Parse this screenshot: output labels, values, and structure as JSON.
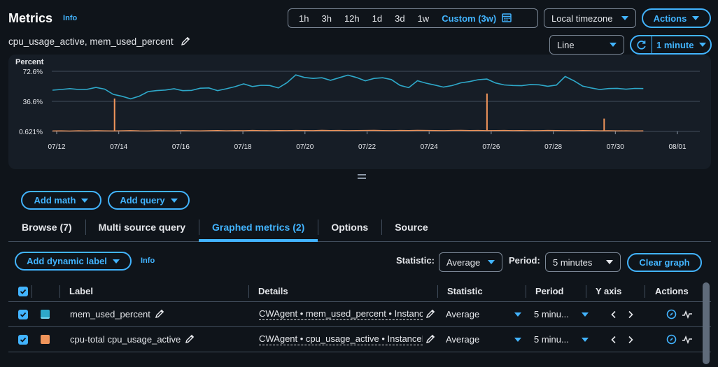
{
  "header": {
    "title": "Metrics",
    "info": "Info",
    "subtitle": "cpu_usage_active, mem_used_percent"
  },
  "time_range": {
    "options": [
      "1h",
      "3h",
      "12h",
      "1d",
      "3d",
      "1w"
    ],
    "custom": "Custom (3w)"
  },
  "timezone": "Local timezone",
  "actions_label": "Actions",
  "chart_type": "Line",
  "refresh_interval": "1 minute",
  "chart_data": {
    "type": "line",
    "ylabel": "Percent",
    "yticks": [
      "72.6%",
      "36.6%",
      "0.621%"
    ],
    "xticks": [
      "07/12",
      "07/14",
      "07/16",
      "07/18",
      "07/20",
      "07/22",
      "07/24",
      "07/26",
      "07/28",
      "07/30",
      "08/01"
    ],
    "ylim": [
      0.621,
      72.6
    ],
    "grid": true,
    "series": [
      {
        "name": "mem_used_percent",
        "color": "#2ea8c9",
        "values": [
          50,
          52,
          53,
          51,
          50,
          52,
          51,
          46,
          44,
          40,
          42,
          47,
          49,
          51,
          53,
          50,
          49,
          51,
          52,
          50,
          53,
          55,
          57,
          53,
          55,
          56,
          54,
          60,
          68,
          64,
          63,
          65,
          63,
          66,
          68,
          64,
          60,
          64,
          66,
          64,
          56,
          52,
          60,
          58,
          57,
          55,
          56,
          58,
          59,
          62,
          64,
          60,
          57,
          55,
          54,
          56,
          57,
          56,
          57,
          66,
          60,
          54,
          53,
          52,
          53,
          52,
          50,
          51,
          52
        ]
      },
      {
        "name": "cpu_usage_active",
        "color": "#f0955b",
        "values": [
          1.2,
          1.3,
          1.1,
          1.4,
          1.2,
          1.5,
          1.3,
          1.2,
          1.4,
          1.6,
          1.3,
          1.2,
          1.5,
          1.4,
          1.3,
          1.6,
          1.4,
          1.3,
          1.5,
          1.7,
          1.4,
          1.6,
          1.5,
          1.8,
          1.6,
          1.5,
          1.7,
          1.6,
          1.8,
          1.7,
          1.6,
          1.9,
          1.7,
          1.8,
          1.6,
          1.7,
          1.8,
          1.9,
          1.7,
          1.6,
          1.8,
          1.7,
          1.9,
          1.8,
          1.7,
          1.6,
          1.8,
          1.9,
          1.7,
          1.8,
          1.6,
          1.7,
          1.8,
          1.6,
          1.7,
          1.5,
          1.6,
          1.8,
          1.7,
          1.6,
          1.5,
          1.7,
          1.6,
          1.4,
          1.5,
          1.3,
          1.4,
          1.2,
          1.3
        ],
        "spikes": [
          [
            "07/14",
            40
          ],
          [
            "07/26",
            46
          ],
          [
            "07/30",
            16
          ]
        ]
      }
    ]
  },
  "buttons": {
    "add_math": "Add math",
    "add_query": "Add query",
    "add_dynamic_label": "Add dynamic label",
    "clear_graph": "Clear graph"
  },
  "tabs": [
    {
      "label": "Browse (7)",
      "active": false
    },
    {
      "label": "Multi source query",
      "active": false
    },
    {
      "label": "Graphed metrics (2)",
      "active": true
    },
    {
      "label": "Options",
      "active": false
    },
    {
      "label": "Source",
      "active": false
    }
  ],
  "toolbar": {
    "info": "Info",
    "statistic_label": "Statistic:",
    "statistic_value": "Average",
    "period_label": "Period:",
    "period_value": "5 minutes"
  },
  "table": {
    "columns": [
      "Label",
      "Details",
      "Statistic",
      "Period",
      "Y axis",
      "Actions"
    ],
    "rows": [
      {
        "label": "mem_used_percent",
        "color": "#2ea8c9",
        "details": "CWAgent • mem_used_percent • Instance",
        "statistic": "Average",
        "period": "5 minu..."
      },
      {
        "label": "cpu-total cpu_usage_active",
        "color": "#f0955b",
        "details": "CWAgent • cpu_usage_active • InstanceId",
        "statistic": "Average",
        "period": "5 minu..."
      }
    ]
  }
}
